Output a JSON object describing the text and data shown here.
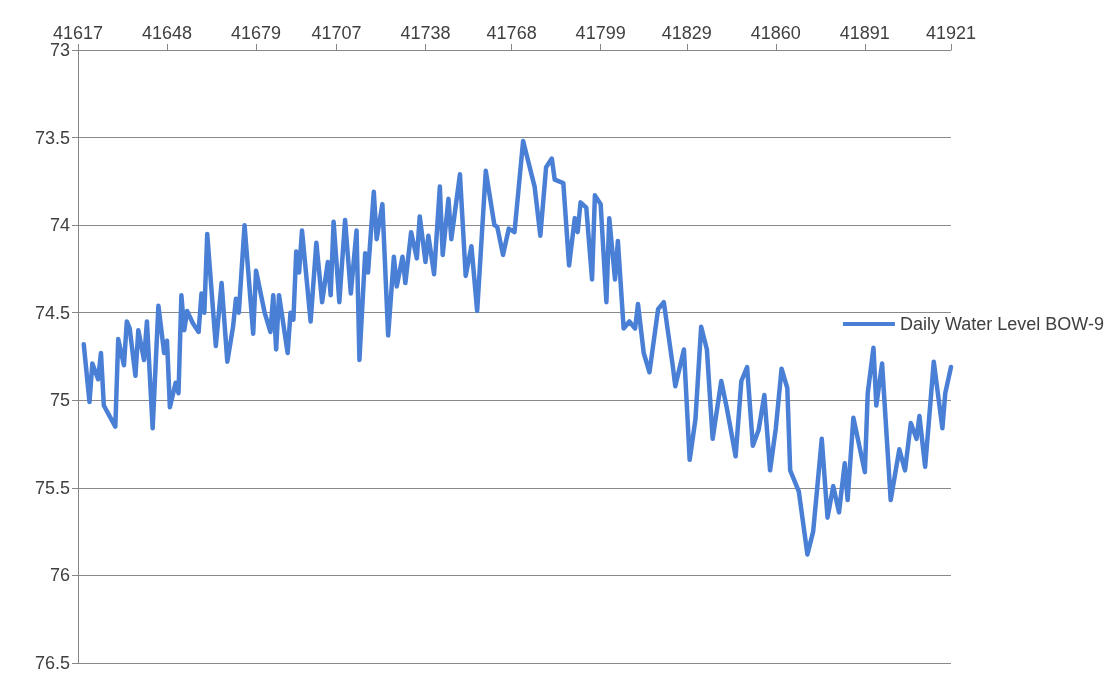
{
  "chart_data": {
    "type": "line",
    "xlim": [
      41617,
      41921
    ],
    "xticks": [
      41617,
      41648,
      41679,
      41707,
      41738,
      41768,
      41799,
      41829,
      41860,
      41891,
      41921
    ],
    "ylim": [
      76.5,
      73
    ],
    "yticks": [
      73,
      73.5,
      74,
      74.5,
      75,
      75.5,
      76,
      76.5
    ],
    "grid": "y",
    "legend": "right",
    "marker": "none",
    "line_style": "solid",
    "series": [
      {
        "name": "Daily Water Level BOW-9",
        "color": "#4a7fd6",
        "x": [
          41619,
          41621,
          41622,
          41624,
          41625,
          41626,
          41628,
          41630,
          41631,
          41633,
          41634,
          41635,
          41637,
          41638,
          41640,
          41641,
          41643,
          41645,
          41647,
          41648,
          41649,
          41651,
          41652,
          41653,
          41654,
          41655,
          41657,
          41659,
          41660,
          41661,
          41662,
          41664,
          41665,
          41667,
          41669,
          41671,
          41672,
          41673,
          41675,
          41678,
          41679,
          41682,
          41684,
          41685,
          41686,
          41687,
          41690,
          41691,
          41692,
          41693,
          41694,
          41695,
          41698,
          41700,
          41702,
          41704,
          41705,
          41706,
          41708,
          41710,
          41712,
          41714,
          41715,
          41717,
          41718,
          41720,
          41721,
          41723,
          41725,
          41727,
          41728,
          41730,
          41731,
          41733,
          41735,
          41736,
          41738,
          41739,
          41741,
          41743,
          41744,
          41746,
          41747,
          41750,
          41752,
          41754,
          41756,
          41759,
          41762,
          41763,
          41765,
          41767,
          41769,
          41772,
          41776,
          41778,
          41780,
          41782,
          41783,
          41786,
          41788,
          41790,
          41791,
          41792,
          41794,
          41796,
          41797,
          41799,
          41801,
          41802,
          41804,
          41805,
          41807,
          41809,
          41811,
          41812,
          41814,
          41816,
          41819,
          41821,
          41824,
          41825,
          41828,
          41830,
          41832,
          41834,
          41836,
          41838,
          41841,
          41843,
          41846,
          41848,
          41850,
          41852,
          41854,
          41856,
          41858,
          41860,
          41862,
          41864,
          41865,
          41868,
          41871,
          41873,
          41876,
          41878,
          41880,
          41882,
          41884,
          41885,
          41887,
          41891,
          41892,
          41894,
          41895,
          41897,
          41900,
          41903,
          41905,
          41907,
          41909,
          41910,
          41912,
          41915,
          41918,
          41919,
          41921
        ],
        "values": [
          74.68,
          75.01,
          74.79,
          74.88,
          74.73,
          75.03,
          75.09,
          75.15,
          74.65,
          74.8,
          74.55,
          74.59,
          74.86,
          74.6,
          74.77,
          74.55,
          75.16,
          74.46,
          74.73,
          74.66,
          75.04,
          74.9,
          74.96,
          74.4,
          74.6,
          74.49,
          74.56,
          74.61,
          74.39,
          74.5,
          74.05,
          74.48,
          74.69,
          74.33,
          74.78,
          74.58,
          74.42,
          74.5,
          74.0,
          74.62,
          74.26,
          74.5,
          74.61,
          74.4,
          74.71,
          74.4,
          74.73,
          74.5,
          74.54,
          74.15,
          74.27,
          74.03,
          74.55,
          74.1,
          74.44,
          74.21,
          74.4,
          73.98,
          74.44,
          73.97,
          74.39,
          74.03,
          74.77,
          74.16,
          74.27,
          73.81,
          74.08,
          73.88,
          74.63,
          74.18,
          74.35,
          74.18,
          74.33,
          74.04,
          74.19,
          73.95,
          74.21,
          74.06,
          74.28,
          73.78,
          74.17,
          73.85,
          74.08,
          73.71,
          74.29,
          74.12,
          74.49,
          73.69,
          74.0,
          74.01,
          74.17,
          74.02,
          74.04,
          73.52,
          73.78,
          74.06,
          73.67,
          73.62,
          73.74,
          73.76,
          74.23,
          73.96,
          74.04,
          73.87,
          73.9,
          74.31,
          73.83,
          73.88,
          74.44,
          73.96,
          74.31,
          74.09,
          74.59,
          74.55,
          74.59,
          74.45,
          74.73,
          74.84,
          74.48,
          74.44,
          74.79,
          74.92,
          74.71,
          75.34,
          75.11,
          74.58,
          74.71,
          75.22,
          74.89,
          75.05,
          75.32,
          74.89,
          74.81,
          75.26,
          75.17,
          74.97,
          75.4,
          75.16,
          74.82,
          74.93,
          75.4,
          75.52,
          75.88,
          75.75,
          75.22,
          75.67,
          75.49,
          75.64,
          75.36,
          75.57,
          75.1,
          75.41,
          74.96,
          74.7,
          75.03,
          74.79,
          75.57,
          75.28,
          75.4,
          75.13,
          75.22,
          75.09,
          75.38,
          74.78,
          75.16,
          74.96,
          74.81
        ]
      }
    ]
  }
}
